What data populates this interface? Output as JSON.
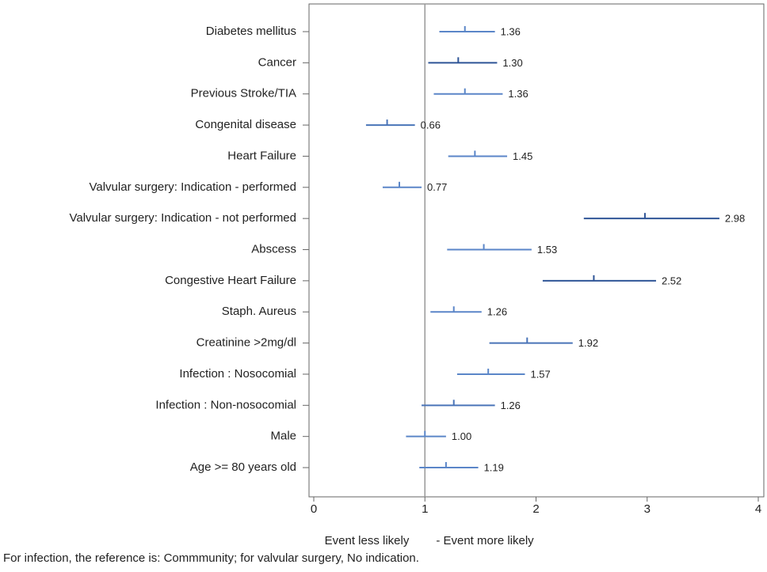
{
  "chart_data": {
    "type": "forest",
    "categories": [
      "Diabetes mellitus",
      "Cancer",
      "Previous Stroke/TIA",
      "Congenital disease",
      "Heart Failure",
      "Valvular surgery: Indication - performed",
      "Valvular surgery: Indication - not performed",
      "Abscess",
      "Congestive Heart Failure",
      "Staph. Aureus",
      "Creatinine >2mg/dl",
      "Infection : Nosocomial",
      "Infection : Non-nosocomial",
      "Male",
      "Age >= 80 years old"
    ],
    "values": [
      1.36,
      1.3,
      1.36,
      0.66,
      1.45,
      0.77,
      2.98,
      1.53,
      2.52,
      1.26,
      1.92,
      1.57,
      1.26,
      1.0,
      1.19
    ],
    "value_labels": [
      "1.36",
      "1.30",
      "1.36",
      "0.66",
      "1.45",
      "0.77",
      "2.98",
      "1.53",
      "2.52",
      "1.26",
      "1.92",
      "1.57",
      "1.26",
      "1.00",
      "1.19"
    ],
    "lower": [
      1.13,
      1.03,
      1.08,
      0.47,
      1.21,
      0.62,
      2.43,
      1.2,
      2.06,
      1.05,
      1.58,
      1.29,
      0.97,
      0.83,
      0.95
    ],
    "upper": [
      1.63,
      1.65,
      1.7,
      0.91,
      1.74,
      0.97,
      3.65,
      1.96,
      3.08,
      1.51,
      2.33,
      1.9,
      1.63,
      1.19,
      1.48
    ],
    "colors": [
      "#5b86c8",
      "#2f5597",
      "#5b86c8",
      "#4a74b8",
      "#5b86c8",
      "#5b86c8",
      "#2f5597",
      "#5b86c8",
      "#2f5597",
      "#5b86c8",
      "#4a74b8",
      "#5b86c8",
      "#4a74b8",
      "#5b86c8",
      "#5b86c8"
    ],
    "xlim": [
      0,
      4
    ],
    "xticks": [
      0,
      1,
      2,
      3,
      4
    ],
    "reference_line": 1,
    "xlabel_left": "Event less likely",
    "xlabel_right": "- Event more likely",
    "footnote": "For infection, the reference is: Commmunity; for valvular surgery, No indication."
  }
}
